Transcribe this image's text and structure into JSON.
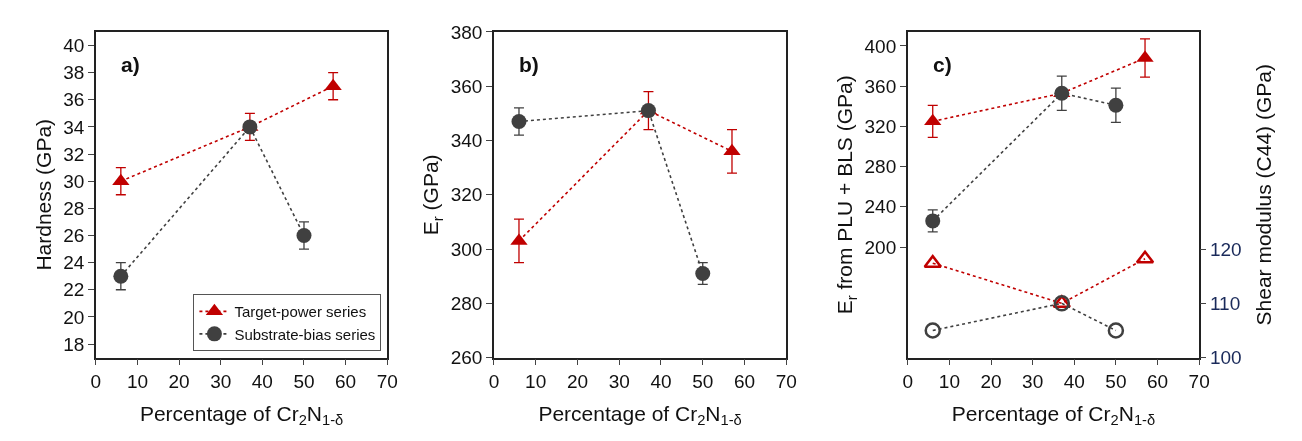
{
  "chart_data": [
    {
      "type": "line",
      "xlabel": "Percentage of Cr$_{2}$N$_{1-δ}$",
      "ylabel": "Hardness (GPa)",
      "annotations": [
        "a)"
      ],
      "xlim": [
        0,
        70
      ],
      "xticks": [
        0,
        10,
        20,
        30,
        40,
        50,
        60,
        70
      ],
      "ylim": [
        17,
        41
      ],
      "yticks": [
        18,
        20,
        22,
        24,
        26,
        28,
        30,
        32,
        34,
        36,
        38,
        40
      ],
      "legend": "bottom right",
      "line_style": "dotted",
      "series": [
        {
          "name": "Target-power series",
          "color": "#c00000",
          "marker": "triangle",
          "x": [
            6,
            37,
            57
          ],
          "values": [
            30,
            34,
            37
          ],
          "errors": [
            1,
            1,
            1
          ]
        },
        {
          "name": "Substrate-bias series",
          "color": "#404040",
          "marker": "circle",
          "x": [
            6,
            37,
            50
          ],
          "values": [
            23,
            34,
            26
          ],
          "errors": [
            1,
            null,
            1
          ]
        }
      ]
    },
    {
      "type": "line",
      "xlabel": "Percentage of Cr$_{2}$N$_{1-δ}$",
      "ylabel": "E$_{r}$ (GPa)",
      "annotations": [
        "b)"
      ],
      "xlim": [
        0,
        70
      ],
      "xticks": [
        0,
        10,
        20,
        30,
        40,
        50,
        60,
        70
      ],
      "ylim": [
        260,
        380
      ],
      "yticks": [
        260,
        280,
        300,
        320,
        340,
        360,
        380
      ],
      "line_style": "dotted",
      "series": [
        {
          "color": "#c00000",
          "marker": "triangle",
          "x": [
            6,
            37,
            57
          ],
          "values": [
            303,
            351,
            336
          ],
          "errors": [
            8,
            7,
            8
          ]
        },
        {
          "color": "#404040",
          "marker": "circle",
          "x": [
            6,
            37,
            50
          ],
          "values": [
            347,
            351,
            291
          ],
          "errors": [
            5,
            null,
            4
          ]
        }
      ]
    },
    {
      "type": "line",
      "xlabel": "Percentage of Cr$_{2}$N$_{1-δ}$",
      "ylabel": "E$_{r}$ from PLU + BLS (GPa)",
      "y2label": "Shear modulus (C44) (GPa)",
      "annotations": [
        "c)"
      ],
      "xlim": [
        0,
        70
      ],
      "xticks": [
        0,
        10,
        20,
        30,
        40,
        50,
        60,
        70
      ],
      "ylim": [
        90,
        414
      ],
      "yticks": [
        200,
        240,
        280,
        320,
        360,
        400
      ],
      "y2lim": [
        100,
        160
      ],
      "y2ticks": [
        100,
        110,
        120
      ],
      "line_style": "dotted",
      "series": [
        {
          "color": "#c00000",
          "marker": "triangle",
          "x": [
            6,
            37,
            57
          ],
          "values": [
            325,
            353,
            388
          ],
          "errors": [
            16,
            null,
            19
          ]
        },
        {
          "color": "#404040",
          "marker": "circle",
          "x": [
            6,
            37,
            50
          ],
          "values": [
            226,
            353,
            341
          ],
          "errors": [
            11,
            17,
            17
          ]
        },
        {
          "color": "#c00000",
          "marker": "triangle",
          "axis": "y2",
          "x": [
            6,
            37,
            57
          ],
          "values": [
            117.4,
            110,
            118.2
          ]
        },
        {
          "color": "#404040",
          "marker": "circle",
          "axis": "y2",
          "x": [
            6,
            37,
            50
          ],
          "values": [
            105,
            110,
            105
          ]
        }
      ]
    }
  ]
}
